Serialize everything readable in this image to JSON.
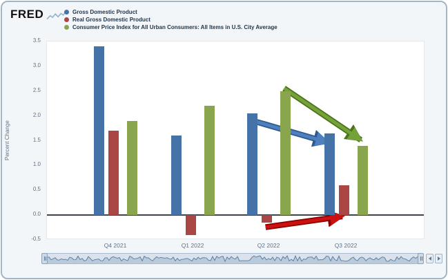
{
  "logo": {
    "text": "FRED"
  },
  "icons": {
    "fred-sparkline-icon": "zigzag-line",
    "legend-marker-icon": "filled-circle",
    "navigator-handle-icon": "grip-lines",
    "scroll-left-icon": "triangle-left",
    "scroll-right-icon": "triangle-right"
  },
  "chart_data": {
    "type": "bar",
    "title": "",
    "xlabel": "",
    "ylabel": "Percent Change",
    "categories": [
      "Q4 2021",
      "Q1 2022",
      "Q2 2022",
      "Q3 2022"
    ],
    "series": [
      {
        "name": "Gross Domestic Product",
        "color": "#4572A7",
        "values": [
          3.4,
          1.6,
          2.05,
          1.65
        ]
      },
      {
        "name": "Real Gross Domestic Product",
        "color": "#AA4643",
        "values": [
          1.7,
          -0.4,
          -0.15,
          0.6
        ]
      },
      {
        "name": "Consumer Price Index for All Urban Consumers: All Items in U.S. City Average",
        "color": "#89A54E",
        "values": [
          1.9,
          2.2,
          2.5,
          1.4
        ]
      }
    ],
    "ylim": [
      -0.5,
      3.5
    ],
    "ytick_step": 0.5,
    "grid": false,
    "zero_line": true,
    "legend_position": "top-left",
    "annotations": [
      {
        "name": "gdp-decline-arrow",
        "series": "Gross Domestic Product",
        "from_quarter": "Q2 2022",
        "from_value": 1.9,
        "to_quarter": "Q3 2022",
        "to_value": 1.45,
        "color": "#4E7FBE",
        "border_color": "#2E5B8F"
      },
      {
        "name": "cpi-decline-arrow",
        "series": "Consumer Price Index for All Urban Consumers: All Items in U.S. City Average",
        "from_quarter": "Q2 2022",
        "from_value": 2.55,
        "to_quarter": "Q3 2022",
        "to_value": 1.5,
        "color": "#74A23A",
        "border_color": "#4C7317"
      },
      {
        "name": "real-gdp-rise-arrow",
        "series": "Real Gross Domestic Product",
        "from_quarter": "Q2 2022",
        "from_value": -0.27,
        "to_quarter": "Q3 2022",
        "to_value": -0.05,
        "color": "#CC1111",
        "border_color": "#8B0000"
      }
    ]
  }
}
